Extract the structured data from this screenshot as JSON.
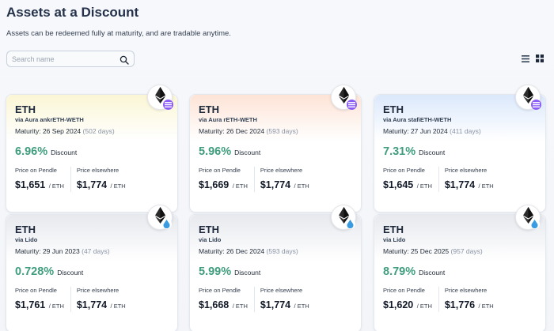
{
  "page": {
    "title": "Assets at a Discount",
    "subtitle": "Assets can be redeemed fully at maturity, and are tradable anytime."
  },
  "search": {
    "placeholder": "Search name",
    "value": ""
  },
  "view_toggle": {
    "list_icon": "list-icon",
    "grid_icon": "grid-icon",
    "active": "grid"
  },
  "labels": {
    "discount": "Discount",
    "price_on_pendle": "Price on Pendle",
    "price_elsewhere": "Price elsewhere",
    "unit": "/ ETH"
  },
  "colors": {
    "discount_green": "#3f9d7e",
    "aura_purple": "#8b5cf6",
    "lido_blue": "#3b9be0"
  },
  "cards": [
    {
      "symbol": "ETH",
      "source": "via Aura ankrETH-WETH",
      "maturity": "Maturity: 26 Sep 2024",
      "days": "(502 days)",
      "discount": "6.96%",
      "price_pendle": "$1,651",
      "price_elsewhere": "$1,774",
      "protocol_icon": "aura-icon",
      "token_icon": "eth-icon",
      "header_color": "#fbf6d5"
    },
    {
      "symbol": "ETH",
      "source": "via Aura rETH-WETH",
      "maturity": "Maturity: 26 Dec 2024",
      "days": "(593 days)",
      "discount": "5.96%",
      "price_pendle": "$1,669",
      "price_elsewhere": "$1,774",
      "protocol_icon": "aura-icon",
      "token_icon": "eth-icon",
      "header_color": "#fde3d6"
    },
    {
      "symbol": "ETH",
      "source": "via Aura stafiETH-WETH",
      "maturity": "Maturity: 27 Jun 2024",
      "days": "(411 days)",
      "discount": "7.31%",
      "price_pendle": "$1,645",
      "price_elsewhere": "$1,774",
      "protocol_icon": "aura-icon",
      "token_icon": "eth-icon",
      "header_color": "#dbe8fb"
    },
    {
      "symbol": "ETH",
      "source": "via Lido",
      "maturity": "Maturity: 29 Jun 2023",
      "days": "(47 days)",
      "discount": "0.728%",
      "price_pendle": "$1,761",
      "price_elsewhere": "$1,774",
      "protocol_icon": "lido-icon",
      "token_icon": "eth-icon",
      "header_color": "#e7e9ee"
    },
    {
      "symbol": "ETH",
      "source": "via Lido",
      "maturity": "Maturity: 26 Dec 2024",
      "days": "(593 days)",
      "discount": "5.99%",
      "price_pendle": "$1,668",
      "price_elsewhere": "$1,774",
      "protocol_icon": "lido-icon",
      "token_icon": "eth-icon",
      "header_color": "#e7e9ee"
    },
    {
      "symbol": "ETH",
      "source": "via Lido",
      "maturity": "Maturity: 25 Dec 2025",
      "days": "(957 days)",
      "discount": "8.79%",
      "price_pendle": "$1,620",
      "price_elsewhere": "$1,776",
      "protocol_icon": "lido-icon",
      "token_icon": "eth-icon",
      "header_color": "#e7e9ee"
    }
  ]
}
